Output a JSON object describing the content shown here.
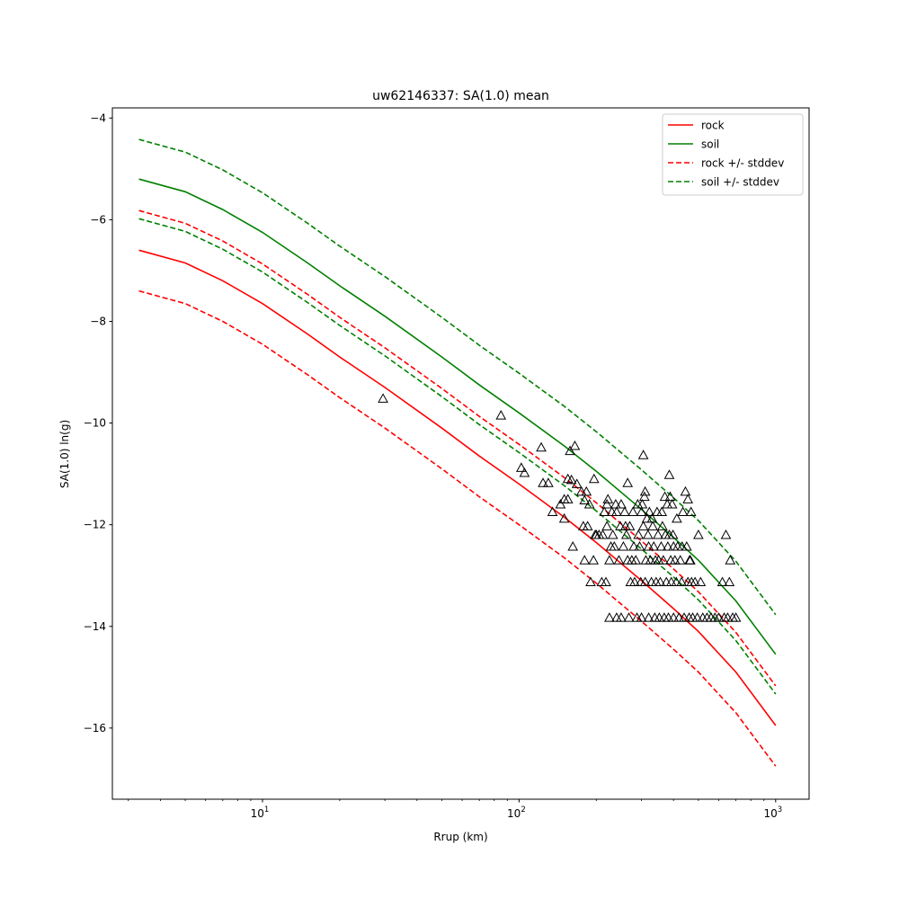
{
  "chart_data": {
    "type": "line",
    "title": "uw62146337: SA(1.0) mean",
    "xlabel": "Rrup (km)",
    "ylabel": "SA(1.0) ln(g)",
    "xscale": "log",
    "xlim": [
      2.6,
      1350
    ],
    "ylim": [
      -17.4,
      -3.8
    ],
    "xticks": [
      {
        "value": 10,
        "base": "10",
        "exp": "1"
      },
      {
        "value": 100,
        "base": "10",
        "exp": "2"
      },
      {
        "value": 1000,
        "base": "10",
        "exp": "3"
      }
    ],
    "yticks": [
      -4,
      -6,
      -8,
      -10,
      -12,
      -14,
      -16
    ],
    "yticks_labels": [
      "−4",
      "−6",
      "−8",
      "−10",
      "−12",
      "−14",
      "−16"
    ],
    "grid": false,
    "legend_position": "top-right",
    "series": [
      {
        "name": "rock",
        "color": "#ff0000",
        "dash": "solid",
        "x": [
          3.3,
          5,
          7,
          10,
          15,
          20,
          30,
          50,
          70,
          100,
          150,
          200,
          300,
          400,
          500,
          700,
          1000
        ],
        "y": [
          -6.6,
          -6.85,
          -7.2,
          -7.65,
          -8.25,
          -8.7,
          -9.3,
          -10.1,
          -10.65,
          -11.2,
          -11.85,
          -12.35,
          -13.1,
          -13.65,
          -14.1,
          -14.9,
          -15.95
        ]
      },
      {
        "name": "soil",
        "color": "#008000",
        "dash": "solid",
        "x": [
          3.3,
          5,
          7,
          10,
          15,
          20,
          30,
          50,
          70,
          100,
          150,
          200,
          300,
          400,
          500,
          700,
          1000
        ],
        "y": [
          -5.2,
          -5.45,
          -5.8,
          -6.25,
          -6.85,
          -7.3,
          -7.9,
          -8.7,
          -9.25,
          -9.8,
          -10.45,
          -10.95,
          -11.7,
          -12.25,
          -12.7,
          -13.5,
          -14.55
        ]
      },
      {
        "name": "rock +/- stddev",
        "color": "#ff0000",
        "dash": "dashed",
        "x": [
          3.3,
          5,
          7,
          10,
          15,
          20,
          30,
          50,
          70,
          100,
          150,
          200,
          300,
          400,
          500,
          700,
          1000
        ],
        "y": [
          -5.82,
          -6.07,
          -6.42,
          -6.87,
          -7.47,
          -7.92,
          -8.52,
          -9.32,
          -9.87,
          -10.42,
          -11.07,
          -11.57,
          -12.32,
          -12.87,
          -13.32,
          -14.12,
          -15.17
        ]
      },
      {
        "name": "",
        "color": "#ff0000",
        "dash": "dashed",
        "x": [
          3.3,
          5,
          7,
          10,
          15,
          20,
          30,
          50,
          70,
          100,
          150,
          200,
          300,
          400,
          500,
          700,
          1000
        ],
        "y": [
          -7.4,
          -7.65,
          -8.0,
          -8.45,
          -9.05,
          -9.5,
          -10.1,
          -10.9,
          -11.45,
          -12.0,
          -12.65,
          -13.15,
          -13.9,
          -14.45,
          -14.9,
          -15.7,
          -16.75
        ]
      },
      {
        "name": "soil +/- stddev",
        "color": "#008000",
        "dash": "dashed",
        "x": [
          3.3,
          5,
          7,
          10,
          15,
          20,
          30,
          50,
          70,
          100,
          150,
          200,
          300,
          400,
          500,
          700,
          1000
        ],
        "y": [
          -4.42,
          -4.67,
          -5.02,
          -5.47,
          -6.07,
          -6.52,
          -7.12,
          -7.92,
          -8.47,
          -9.02,
          -9.67,
          -10.17,
          -10.92,
          -11.47,
          -11.92,
          -12.72,
          -13.77
        ]
      },
      {
        "name": "",
        "color": "#008000",
        "dash": "dashed",
        "x": [
          3.3,
          5,
          7,
          10,
          15,
          20,
          30,
          50,
          70,
          100,
          150,
          200,
          300,
          400,
          500,
          700,
          1000
        ],
        "y": [
          -5.98,
          -6.23,
          -6.58,
          -7.03,
          -7.63,
          -8.08,
          -8.68,
          -9.48,
          -10.03,
          -10.58,
          -11.23,
          -11.73,
          -12.48,
          -13.03,
          -13.48,
          -14.28,
          -15.33
        ]
      }
    ],
    "observations": {
      "marker": "triangle",
      "color": "#000000",
      "points": [
        [
          29.5,
          -9.52
        ],
        [
          85,
          -9.85
        ],
        [
          102,
          -10.88
        ],
        [
          105,
          -10.98
        ],
        [
          122,
          -10.48
        ],
        [
          124,
          -11.18
        ],
        [
          130,
          -11.18
        ],
        [
          135,
          -11.75
        ],
        [
          145,
          -11.6
        ],
        [
          150,
          -11.88
        ],
        [
          150,
          -11.5
        ],
        [
          155,
          -11.1
        ],
        [
          155,
          -11.5
        ],
        [
          158,
          -10.55
        ],
        [
          160,
          -11.12
        ],
        [
          162,
          -12.43
        ],
        [
          165,
          -10.45
        ],
        [
          168,
          -11.2
        ],
        [
          175,
          -11.35
        ],
        [
          178,
          -12.03
        ],
        [
          180,
          -11.52
        ],
        [
          180,
          -12.7
        ],
        [
          183,
          -11.35
        ],
        [
          185,
          -12.03
        ],
        [
          188,
          -11.6
        ],
        [
          190,
          -13.13
        ],
        [
          195,
          -12.7
        ],
        [
          196,
          -11.1
        ],
        [
          198,
          -12.2
        ],
        [
          200,
          -12.2
        ],
        [
          205,
          -12.2
        ],
        [
          210,
          -13.13
        ],
        [
          212,
          -12.2
        ],
        [
          215,
          -11.75
        ],
        [
          218,
          -13.13
        ],
        [
          220,
          -11.6
        ],
        [
          220,
          -12.03
        ],
        [
          222,
          -11.5
        ],
        [
          225,
          -12.7
        ],
        [
          225,
          -13.83
        ],
        [
          228,
          -12.43
        ],
        [
          230,
          -11.75
        ],
        [
          232,
          -12.2
        ],
        [
          235,
          -12.43
        ],
        [
          238,
          -11.6
        ],
        [
          240,
          -11.75
        ],
        [
          240,
          -13.83
        ],
        [
          245,
          -12.7
        ],
        [
          248,
          -12.03
        ],
        [
          250,
          -11.6
        ],
        [
          250,
          -13.83
        ],
        [
          255,
          -12.43
        ],
        [
          258,
          -11.75
        ],
        [
          260,
          -12.03
        ],
        [
          262,
          -12.2
        ],
        [
          265,
          -11.18
        ],
        [
          265,
          -12.7
        ],
        [
          268,
          -13.83
        ],
        [
          270,
          -12.03
        ],
        [
          272,
          -13.13
        ],
        [
          275,
          -12.7
        ],
        [
          278,
          -11.75
        ],
        [
          280,
          -12.43
        ],
        [
          282,
          -13.13
        ],
        [
          285,
          -12.7
        ],
        [
          288,
          -13.83
        ],
        [
          290,
          -11.6
        ],
        [
          292,
          -12.2
        ],
        [
          295,
          -12.43
        ],
        [
          298,
          -13.13
        ],
        [
          300,
          -11.75
        ],
        [
          300,
          -13.83
        ],
        [
          302,
          -11.6
        ],
        [
          305,
          -10.63
        ],
        [
          305,
          -12.03
        ],
        [
          308,
          -11.45
        ],
        [
          310,
          -11.35
        ],
        [
          310,
          -13.13
        ],
        [
          312,
          -12.7
        ],
        [
          315,
          -11.88
        ],
        [
          318,
          -12.2
        ],
        [
          320,
          -12.43
        ],
        [
          320,
          -13.83
        ],
        [
          322,
          -11.75
        ],
        [
          325,
          -12.7
        ],
        [
          328,
          -13.13
        ],
        [
          330,
          -11.88
        ],
        [
          332,
          -12.03
        ],
        [
          335,
          -12.43
        ],
        [
          338,
          -13.83
        ],
        [
          340,
          -12.7
        ],
        [
          342,
          -13.13
        ],
        [
          345,
          -11.75
        ],
        [
          348,
          -12.2
        ],
        [
          350,
          -12.7
        ],
        [
          352,
          -13.83
        ],
        [
          355,
          -13.13
        ],
        [
          358,
          -12.43
        ],
        [
          360,
          -11.75
        ],
        [
          362,
          -12.03
        ],
        [
          365,
          -12.7
        ],
        [
          368,
          -13.83
        ],
        [
          370,
          -11.45
        ],
        [
          372,
          -12.2
        ],
        [
          375,
          -13.13
        ],
        [
          378,
          -11.6
        ],
        [
          380,
          -12.43
        ],
        [
          382,
          -13.83
        ],
        [
          385,
          -11.02
        ],
        [
          385,
          -12.2
        ],
        [
          388,
          -11.45
        ],
        [
          390,
          -12.7
        ],
        [
          392,
          -13.13
        ],
        [
          395,
          -11.6
        ],
        [
          398,
          -12.2
        ],
        [
          400,
          -12.43
        ],
        [
          400,
          -13.83
        ],
        [
          405,
          -12.7
        ],
        [
          410,
          -13.13
        ],
        [
          412,
          -11.88
        ],
        [
          415,
          -12.43
        ],
        [
          420,
          -13.83
        ],
        [
          425,
          -12.7
        ],
        [
          430,
          -13.13
        ],
        [
          432,
          -12.43
        ],
        [
          435,
          -11.75
        ],
        [
          440,
          -13.83
        ],
        [
          445,
          -11.35
        ],
        [
          450,
          -12.43
        ],
        [
          455,
          -11.5
        ],
        [
          455,
          -13.13
        ],
        [
          460,
          -13.83
        ],
        [
          462,
          -12.7
        ],
        [
          465,
          -12.7
        ],
        [
          468,
          -11.75
        ],
        [
          470,
          -13.13
        ],
        [
          475,
          -13.83
        ],
        [
          485,
          -13.13
        ],
        [
          495,
          -13.83
        ],
        [
          500,
          -12.2
        ],
        [
          510,
          -13.13
        ],
        [
          520,
          -13.83
        ],
        [
          540,
          -13.83
        ],
        [
          560,
          -13.83
        ],
        [
          580,
          -13.83
        ],
        [
          600,
          -13.83
        ],
        [
          620,
          -13.13
        ],
        [
          630,
          -13.83
        ],
        [
          640,
          -12.2
        ],
        [
          650,
          -13.83
        ],
        [
          660,
          -13.13
        ],
        [
          665,
          -12.7
        ],
        [
          680,
          -13.83
        ],
        [
          700,
          -13.83
        ]
      ]
    }
  }
}
